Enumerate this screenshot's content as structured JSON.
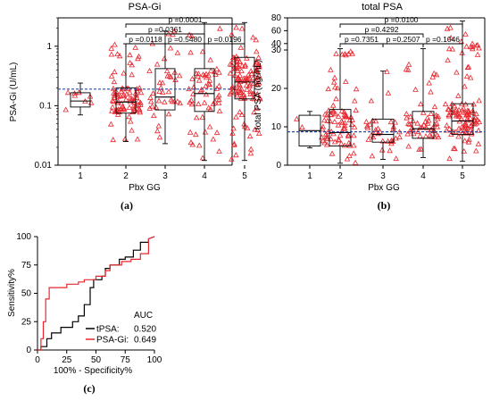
{
  "chart_data": [
    {
      "panel": "(a)",
      "type": "box",
      "title": "PSA-Gi",
      "xlabel": "Pbx GG",
      "ylabel": "PSA-Gi (U/mL)",
      "yscale": "log",
      "ylim": [
        0.01,
        3
      ],
      "ytick_values": [
        0.01,
        0.1,
        1
      ],
      "ytick_labels": [
        "0.01",
        "0.1",
        "1"
      ],
      "categories": [
        "1",
        "2",
        "3",
        "4",
        "5"
      ],
      "reference_line": 0.19,
      "marker_color": "#e8262e",
      "ref_color": "#2f4aa0",
      "boxes": [
        {
          "min": 0.07,
          "q1": 0.095,
          "median": 0.12,
          "q3": 0.165,
          "max": 0.24
        },
        {
          "min": 0.025,
          "q1": 0.075,
          "median": 0.115,
          "q3": 0.2,
          "max": 1.1
        },
        {
          "min": 0.023,
          "q1": 0.085,
          "median": 0.14,
          "q3": 0.42,
          "max": 1.8
        },
        {
          "min": 0.012,
          "q1": 0.08,
          "median": 0.16,
          "q3": 0.42,
          "max": 2.5
        },
        {
          "min": 0.012,
          "q1": 0.13,
          "median": 0.25,
          "q3": 0.65,
          "max": 2.5
        }
      ],
      "comparisons": [
        {
          "from": "2",
          "to": "5",
          "label": "p =0.0001"
        },
        {
          "from": "2",
          "to": "4",
          "label": "p =0.0361"
        },
        {
          "from": "2",
          "to": "3",
          "label": "p =0.0118"
        },
        {
          "from": "3",
          "to": "4",
          "label": "p =0.5480"
        },
        {
          "from": "4",
          "to": "5",
          "label": "p =0.0196"
        }
      ]
    },
    {
      "panel": "(b)",
      "type": "box",
      "title": "total PSA",
      "xlabel": "Pbx GG",
      "ylabel": "total PSA (ng/mL)",
      "ytick_labels": [
        "0",
        "10",
        "20",
        "30",
        "40",
        "60",
        "80"
      ],
      "categories": [
        "1",
        "2",
        "3",
        "4",
        "5"
      ],
      "reference_line": 8.7,
      "marker_color": "#e8262e",
      "ref_color": "#2f4aa0",
      "boxes": [
        {
          "min": 4.5,
          "q1": 5,
          "median": 9,
          "q3": 13,
          "max": 14
        },
        {
          "min": 0.5,
          "q1": 5,
          "median": 8.5,
          "q3": 14.5,
          "max": 32
        },
        {
          "min": 1.5,
          "q1": 6,
          "median": 8,
          "q3": 12,
          "max": 24.5
        },
        {
          "min": 2,
          "q1": 7,
          "median": 9.5,
          "q3": 14,
          "max": 32
        },
        {
          "min": 1,
          "q1": 8,
          "median": 11.5,
          "q3": 16,
          "max": 75
        }
      ],
      "comparisons": [
        {
          "from": "2",
          "to": "5",
          "label": "p =0.0100"
        },
        {
          "from": "2",
          "to": "4",
          "label": "p =0.4292"
        },
        {
          "from": "2",
          "to": "3",
          "label": "p =0.7351"
        },
        {
          "from": "3",
          "to": "4",
          "label": "p =0.2507"
        },
        {
          "from": "4",
          "to": "5",
          "label": "p =0.1046"
        }
      ]
    },
    {
      "panel": "(c)",
      "type": "line",
      "title": "",
      "xlabel": "100% - Specificity%",
      "ylabel": "Sensitivity%",
      "xlim": [
        0,
        100
      ],
      "ylim": [
        0,
        100
      ],
      "xticks": [
        "0",
        "25",
        "50",
        "75",
        "100"
      ],
      "yticks": [
        "0",
        "25",
        "50",
        "75",
        "100"
      ],
      "legend_title": "AUC",
      "series": [
        {
          "name": "tPSA:",
          "auc": "0.520",
          "color": "#000000",
          "x": [
            0,
            3,
            3,
            8,
            8,
            12,
            12,
            20,
            20,
            30,
            30,
            35,
            35,
            40,
            40,
            45,
            45,
            48,
            48,
            55,
            55,
            58,
            58,
            62,
            62,
            70,
            70,
            75,
            75,
            82,
            82,
            88,
            88,
            95,
            95,
            100
          ],
          "y": [
            0,
            0,
            3,
            3,
            10,
            10,
            15,
            15,
            20,
            20,
            25,
            25,
            30,
            30,
            40,
            40,
            55,
            55,
            62,
            62,
            65,
            65,
            72,
            72,
            75,
            75,
            80,
            80,
            82,
            82,
            88,
            88,
            95,
            95,
            98,
            100
          ]
        },
        {
          "name": "PSA-Gi:",
          "auc": "0.649",
          "color": "#e8262e",
          "x": [
            0,
            3,
            3,
            5,
            5,
            7,
            7,
            10,
            10,
            25,
            25,
            35,
            35,
            40,
            40,
            50,
            50,
            58,
            58,
            62,
            62,
            72,
            72,
            80,
            80,
            88,
            88,
            95,
            95,
            100
          ],
          "y": [
            0,
            0,
            10,
            10,
            25,
            25,
            45,
            45,
            55,
            55,
            58,
            58,
            60,
            60,
            62,
            62,
            65,
            65,
            70,
            70,
            75,
            75,
            78,
            78,
            80,
            80,
            85,
            85,
            98,
            100
          ]
        }
      ]
    }
  ]
}
